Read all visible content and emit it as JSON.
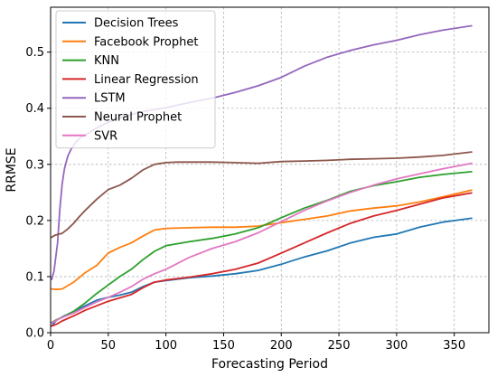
{
  "chart_data": {
    "type": "line",
    "title": "",
    "xlabel": "Forecasting Period",
    "ylabel": "RRMSE",
    "xlim": [
      0,
      380
    ],
    "ylim": [
      0,
      0.58
    ],
    "xticks": [
      0,
      50,
      100,
      150,
      200,
      250,
      300,
      350
    ],
    "yticks": [
      0.0,
      0.1,
      0.2,
      0.3,
      0.4,
      0.5
    ],
    "xtick_labels": [
      "0",
      "50",
      "100",
      "150",
      "200",
      "250",
      "300",
      "350"
    ],
    "ytick_labels": [
      "0.0",
      "0.1",
      "0.2",
      "0.3",
      "0.4",
      "0.5"
    ],
    "grid": true,
    "legend_position": "top-left",
    "series": [
      {
        "name": "Decision Trees",
        "color": "#1f77b4",
        "x": [
          1,
          5,
          10,
          20,
          30,
          40,
          50,
          60,
          70,
          80,
          90,
          100,
          120,
          140,
          160,
          180,
          200,
          220,
          240,
          260,
          280,
          300,
          320,
          340,
          365
        ],
        "y": [
          0.012,
          0.022,
          0.028,
          0.038,
          0.048,
          0.058,
          0.063,
          0.067,
          0.072,
          0.082,
          0.09,
          0.093,
          0.098,
          0.101,
          0.105,
          0.111,
          0.122,
          0.135,
          0.146,
          0.16,
          0.17,
          0.176,
          0.188,
          0.197,
          0.204
        ]
      },
      {
        "name": "Facebook Prophet",
        "color": "#ff7f0e",
        "x": [
          1,
          5,
          10,
          20,
          30,
          40,
          50,
          60,
          70,
          80,
          90,
          100,
          120,
          140,
          160,
          180,
          200,
          220,
          240,
          260,
          280,
          300,
          320,
          340,
          365
        ],
        "y": [
          0.078,
          0.077,
          0.078,
          0.09,
          0.107,
          0.12,
          0.142,
          0.152,
          0.16,
          0.172,
          0.183,
          0.186,
          0.187,
          0.188,
          0.188,
          0.19,
          0.196,
          0.202,
          0.208,
          0.217,
          0.222,
          0.226,
          0.233,
          0.242,
          0.254
        ]
      },
      {
        "name": "KNN",
        "color": "#2ca02c",
        "x": [
          1,
          5,
          10,
          20,
          30,
          40,
          50,
          60,
          70,
          80,
          90,
          100,
          120,
          140,
          160,
          180,
          200,
          220,
          240,
          260,
          280,
          300,
          320,
          340,
          365
        ],
        "y": [
          0.018,
          0.023,
          0.027,
          0.038,
          0.053,
          0.07,
          0.085,
          0.1,
          0.113,
          0.13,
          0.145,
          0.155,
          0.162,
          0.168,
          0.176,
          0.187,
          0.205,
          0.222,
          0.236,
          0.252,
          0.262,
          0.269,
          0.277,
          0.282,
          0.287
        ]
      },
      {
        "name": "Linear Regression",
        "color": "#d62728",
        "x": [
          1,
          5,
          10,
          20,
          30,
          40,
          50,
          60,
          70,
          80,
          90,
          100,
          120,
          140,
          160,
          180,
          200,
          220,
          240,
          260,
          280,
          300,
          320,
          340,
          365
        ],
        "y": [
          0.012,
          0.015,
          0.021,
          0.03,
          0.04,
          0.048,
          0.056,
          0.062,
          0.068,
          0.08,
          0.09,
          0.094,
          0.099,
          0.105,
          0.113,
          0.124,
          0.142,
          0.16,
          0.178,
          0.195,
          0.208,
          0.218,
          0.229,
          0.24,
          0.249
        ]
      },
      {
        "name": "LSTM",
        "color": "#9467bd",
        "x": [
          1,
          3,
          6,
          8,
          10,
          12,
          15,
          18,
          22,
          26,
          30,
          40,
          50,
          60,
          70,
          80,
          100,
          120,
          140,
          160,
          180,
          200,
          220,
          240,
          260,
          280,
          300,
          320,
          340,
          365
        ],
        "y": [
          0.095,
          0.11,
          0.16,
          0.22,
          0.265,
          0.292,
          0.315,
          0.328,
          0.34,
          0.348,
          0.352,
          0.365,
          0.375,
          0.383,
          0.389,
          0.394,
          0.401,
          0.41,
          0.418,
          0.428,
          0.44,
          0.455,
          0.475,
          0.491,
          0.503,
          0.513,
          0.521,
          0.531,
          0.539,
          0.547
        ]
      },
      {
        "name": "Neural Prophet",
        "color": "#8c564b",
        "x": [
          1,
          3,
          6,
          10,
          15,
          20,
          25,
          30,
          40,
          50,
          60,
          70,
          80,
          90,
          100,
          110,
          120,
          140,
          160,
          180,
          200,
          220,
          240,
          260,
          280,
          300,
          320,
          340,
          365
        ],
        "y": [
          0.17,
          0.173,
          0.175,
          0.177,
          0.185,
          0.195,
          0.207,
          0.218,
          0.238,
          0.255,
          0.263,
          0.275,
          0.29,
          0.3,
          0.303,
          0.304,
          0.304,
          0.304,
          0.303,
          0.302,
          0.305,
          0.306,
          0.307,
          0.309,
          0.31,
          0.311,
          0.313,
          0.316,
          0.322
        ]
      },
      {
        "name": "SVR",
        "color": "#e377c2",
        "x": [
          1,
          5,
          10,
          20,
          30,
          40,
          50,
          60,
          70,
          80,
          90,
          100,
          120,
          140,
          160,
          180,
          200,
          220,
          240,
          260,
          280,
          300,
          320,
          340,
          365
        ],
        "y": [
          0.017,
          0.022,
          0.027,
          0.035,
          0.045,
          0.055,
          0.063,
          0.072,
          0.082,
          0.095,
          0.105,
          0.113,
          0.134,
          0.15,
          0.162,
          0.178,
          0.198,
          0.218,
          0.235,
          0.25,
          0.263,
          0.274,
          0.283,
          0.292,
          0.302
        ]
      }
    ]
  }
}
